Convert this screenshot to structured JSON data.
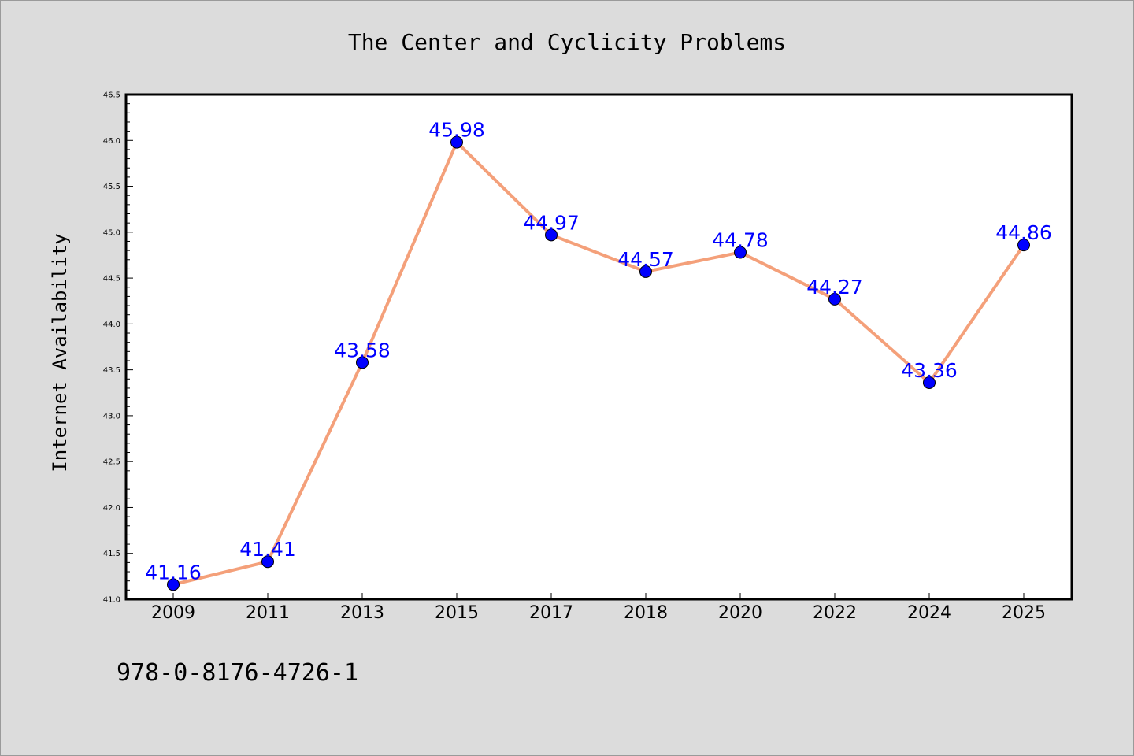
{
  "chart_data": {
    "type": "line",
    "title": "The Center and Cyclicity Problems",
    "xlabel": "",
    "ylabel": "Internet Availability",
    "categories": [
      "2009",
      "2011",
      "2013",
      "2015",
      "2017",
      "2018",
      "2020",
      "2022",
      "2024",
      "2025"
    ],
    "series": [
      {
        "values": [
          41.16,
          41.41,
          43.58,
          45.98,
          44.97,
          44.57,
          44.78,
          44.27,
          43.36,
          44.86
        ],
        "data_labels": [
          "41.16",
          "41.41",
          "43.58",
          "45.98",
          "44.97",
          "44.57",
          "44.78",
          "44.27",
          "43.36",
          "44.86"
        ]
      }
    ],
    "ylim": [
      41.0,
      46.5
    ],
    "yticks": [
      "41.0",
      "41.5",
      "42.0",
      "42.5",
      "43.0",
      "43.5",
      "44.0",
      "44.5",
      "45.0",
      "45.5",
      "46.0",
      "46.5"
    ],
    "grid": false,
    "legend": "none",
    "colors": {
      "line": "#f4a07a",
      "marker": "#0000ff",
      "data_label": "#0000ff",
      "background": "#dcdcdc",
      "plot_background": "#ffffff"
    }
  },
  "footnote": "978-0-8176-4726-1"
}
